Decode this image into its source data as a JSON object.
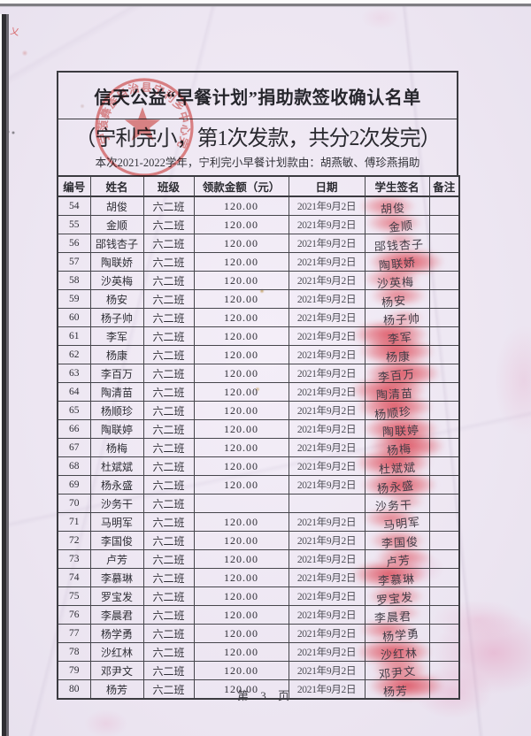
{
  "header": {
    "title": "信天公益“早餐计划”捐助款签收确认名单",
    "subtitle": "（宁利完小，第1次发款，共分2次发完）",
    "note": "本次2021-2022学年，宁利完小早餐计划款由：胡燕敏、傅珍燕捐助"
  },
  "stamp": {
    "ring_text": "宁蒗彝族自治县宁利乡中心完小",
    "color": "#d9534f"
  },
  "table": {
    "columns": [
      "编号",
      "姓名",
      "班级",
      "领款金额（元）",
      "日期",
      "学生签名",
      "备注"
    ],
    "rows": [
      {
        "num": "54",
        "name": "胡俊",
        "class": "六二班",
        "amount": "120.00",
        "date": "2021年9月2日",
        "signature": "胡俊",
        "note": "",
        "print": "medium"
      },
      {
        "num": "55",
        "name": "金顺",
        "class": "六二班",
        "amount": "120.00",
        "date": "2021年9月2日",
        "signature": "金顺",
        "note": "",
        "print": "medium"
      },
      {
        "num": "56",
        "name": "郘钱杏子",
        "class": "六二班",
        "amount": "120.00",
        "date": "2021年9月2日",
        "signature": "郘钱杏子",
        "note": "",
        "print": "light"
      },
      {
        "num": "57",
        "name": "陶联娇",
        "class": "六二班",
        "amount": "120.00",
        "date": "2021年9月2日",
        "signature": "陶联娇",
        "note": "",
        "print": "heavy"
      },
      {
        "num": "58",
        "name": "沙英梅",
        "class": "六二班",
        "amount": "120.00",
        "date": "2021年9月2日",
        "signature": "沙英梅",
        "note": "",
        "print": "medium"
      },
      {
        "num": "59",
        "name": "杨安",
        "class": "六二班",
        "amount": "120.00",
        "date": "2021年9月2日",
        "signature": "杨安",
        "note": "",
        "print": "medium"
      },
      {
        "num": "60",
        "name": "杨子帅",
        "class": "六二班",
        "amount": "120.00",
        "date": "2021年9月2日",
        "signature": "杨子帅",
        "note": "",
        "print": "light"
      },
      {
        "num": "61",
        "name": "李军",
        "class": "六二班",
        "amount": "120.00",
        "date": "2021年9月2日",
        "signature": "李军",
        "note": "",
        "print": "heavy"
      },
      {
        "num": "62",
        "name": "杨康",
        "class": "六二班",
        "amount": "120.00",
        "date": "2021年9月2日",
        "signature": "杨康",
        "note": "",
        "print": "heavy"
      },
      {
        "num": "63",
        "name": "李百万",
        "class": "六二班",
        "amount": "120.00",
        "date": "2021年9月2日",
        "signature": "李百万",
        "note": "",
        "print": "heavy"
      },
      {
        "num": "64",
        "name": "陶清苗",
        "class": "六二班",
        "amount": "120.00",
        "date": "2021年9月2日",
        "signature": "陶清苗",
        "note": "",
        "print": "heavy"
      },
      {
        "num": "65",
        "name": "杨顺珍",
        "class": "六二班",
        "amount": "120.00",
        "date": "2021年9月2日",
        "signature": "杨顺珍",
        "note": "",
        "print": "heavy"
      },
      {
        "num": "66",
        "name": "陶联婷",
        "class": "六二班",
        "amount": "120.00",
        "date": "2021年9月2日",
        "signature": "陶联婷",
        "note": "",
        "print": "heavy"
      },
      {
        "num": "67",
        "name": "杨梅",
        "class": "六二班",
        "amount": "120.00",
        "date": "2021年9月2日",
        "signature": "杨梅",
        "note": "",
        "print": "heavy"
      },
      {
        "num": "68",
        "name": "杜斌斌",
        "class": "六二班",
        "amount": "120.00",
        "date": "2021年9月2日",
        "signature": "杜斌斌",
        "note": "",
        "print": "heavy"
      },
      {
        "num": "69",
        "name": "杨永盛",
        "class": "六二班",
        "amount": "120.00",
        "date": "2021年9月2日",
        "signature": "杨永盛",
        "note": "",
        "print": "heavy"
      },
      {
        "num": "70",
        "name": "沙务干",
        "class": "六二班",
        "amount": "",
        "date": "",
        "signature": "沙务干",
        "note": "",
        "print": "light"
      },
      {
        "num": "71",
        "name": "马明军",
        "class": "六二班",
        "amount": "120.00",
        "date": "2021年9月2日",
        "signature": "马明军",
        "note": "",
        "print": "medium"
      },
      {
        "num": "72",
        "name": "李国俊",
        "class": "六二班",
        "amount": "120.00",
        "date": "2021年9月2日",
        "signature": "李国俊",
        "note": "",
        "print": "medium"
      },
      {
        "num": "73",
        "name": "卢芳",
        "class": "六二班",
        "amount": "120.00",
        "date": "2021年9月2日",
        "signature": "卢芳",
        "note": "",
        "print": "medium"
      },
      {
        "num": "74",
        "name": "李慕琳",
        "class": "六二班",
        "amount": "120.00",
        "date": "2021年9月2日",
        "signature": "李慕琳",
        "note": "",
        "print": "heavy"
      },
      {
        "num": "75",
        "name": "罗宝发",
        "class": "六二班",
        "amount": "120.00",
        "date": "2021年9月2日",
        "signature": "罗宝发",
        "note": "",
        "print": "medium"
      },
      {
        "num": "76",
        "name": "李晨君",
        "class": "六二班",
        "amount": "120.00",
        "date": "2021年9月2日",
        "signature": "李晨君",
        "note": "",
        "print": "light"
      },
      {
        "num": "77",
        "name": "杨学勇",
        "class": "六二班",
        "amount": "120.00",
        "date": "2021年9月2日",
        "signature": "杨学勇",
        "note": "",
        "print": "medium"
      },
      {
        "num": "78",
        "name": "沙红林",
        "class": "六二班",
        "amount": "120.00",
        "date": "2021年9月2日",
        "signature": "沙红林",
        "note": "",
        "print": "heavy"
      },
      {
        "num": "79",
        "name": "邓尹文",
        "class": "六二班",
        "amount": "120.00",
        "date": "2021年9月2日",
        "signature": "邓尹文",
        "note": "",
        "print": "medium"
      },
      {
        "num": "80",
        "name": "杨芳",
        "class": "六二班",
        "amount": "120.00",
        "date": "2021年9月2日",
        "signature": "杨芳",
        "note": "",
        "print": "heavy"
      }
    ]
  },
  "footer": {
    "page_label": "第 3 页"
  },
  "marks": {
    "red_ink_mark": "乂"
  },
  "colors": {
    "seal_red": "#d9534f",
    "paper": "#ece5f1",
    "ink": "#2e2e35"
  }
}
